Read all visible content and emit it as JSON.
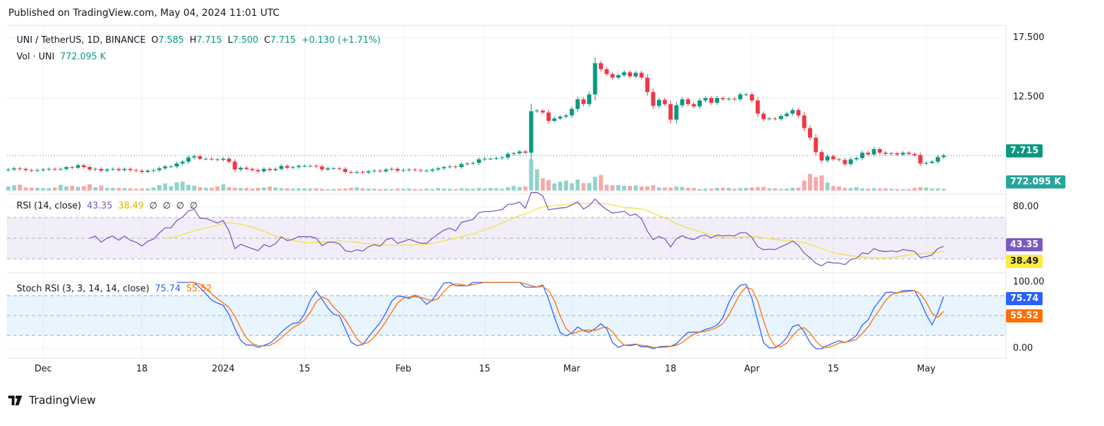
{
  "header": {
    "published": "Published on TradingView.com, May 04, 2024 11:01 UTC"
  },
  "legend": {
    "symbol": "UNI / TetherUS, 1D, BINANCE",
    "o_label": "O",
    "o": "7.585",
    "h_label": "H",
    "h": "7.715",
    "l_label": "L",
    "l": "7.500",
    "c_label": "C",
    "c": "7.715",
    "change": "+0.130 (+1.71%)",
    "vol_label": "Vol · UNI",
    "vol": "772.095 K"
  },
  "rsi_legend": {
    "title": "RSI (14, close)",
    "rsi": "43.35",
    "ma": "38.49",
    "extras": [
      "∅",
      "∅",
      "∅",
      "∅"
    ]
  },
  "stoch_legend": {
    "title": "Stoch RSI (3, 3, 14, 14, close)",
    "k": "75.74",
    "d": "55.52"
  },
  "price_axis": {
    "ticks": [
      "17.500",
      "12.500"
    ],
    "last_price": "7.715",
    "last_volume": "772.095 K"
  },
  "rsi_axis": {
    "ticks": [
      "80.00"
    ],
    "rsi_tag": "43.35",
    "ma_tag": "38.49"
  },
  "stoch_axis": {
    "ticks": [
      "100.00",
      "0.00"
    ],
    "k_tag": "75.74",
    "d_tag": "55.52"
  },
  "footer": {
    "brand": "TradingView"
  },
  "colors": {
    "up": "#089981",
    "down": "#f23645",
    "vol_up": "#92d2cc",
    "vol_down": "#f7a9a7",
    "rsi": "#7e57c2",
    "rsi_ma": "#f7e03c",
    "stoch_k": "#2962ff",
    "stoch_d": "#ff6d00"
  },
  "chart_data": {
    "type": "candlestick",
    "symbol": "UNI / TetherUS",
    "interval": "1D",
    "x_range": [
      "2023-11-25",
      "2024-05-04"
    ],
    "y_ticks": [
      17.5,
      12.5
    ],
    "time_ticks": [
      {
        "label": "Dec",
        "date": "2023-12-01"
      },
      {
        "label": "18",
        "date": "2023-12-18"
      },
      {
        "label": "2024",
        "date": "2024-01-01"
      },
      {
        "label": "15",
        "date": "2024-01-15"
      },
      {
        "label": "Feb",
        "date": "2024-02-01"
      },
      {
        "label": "15",
        "date": "2024-02-15"
      },
      {
        "label": "Mar",
        "date": "2024-03-01"
      },
      {
        "label": "18",
        "date": "2024-03-18"
      },
      {
        "label": "Apr",
        "date": "2024-04-01"
      },
      {
        "label": "15",
        "date": "2024-04-15"
      },
      {
        "label": "May",
        "date": "2024-05-01"
      }
    ],
    "first_open": 6.5,
    "close": [
      6.55,
      6.65,
      6.6,
      6.5,
      6.45,
      6.5,
      6.55,
      6.6,
      6.55,
      6.6,
      6.75,
      6.7,
      6.9,
      6.75,
      6.55,
      6.6,
      6.45,
      6.55,
      6.6,
      6.5,
      6.6,
      6.5,
      6.45,
      6.35,
      6.45,
      6.5,
      6.65,
      6.8,
      6.8,
      7.05,
      7.2,
      7.55,
      7.65,
      7.45,
      7.45,
      7.4,
      7.35,
      7.45,
      7.2,
      6.55,
      6.7,
      6.6,
      6.5,
      6.4,
      6.6,
      6.5,
      6.6,
      6.85,
      6.7,
      6.75,
      6.85,
      6.85,
      6.85,
      6.8,
      6.55,
      6.65,
      6.65,
      6.6,
      6.35,
      6.3,
      6.35,
      6.3,
      6.4,
      6.45,
      6.4,
      6.55,
      6.6,
      6.45,
      6.5,
      6.55,
      6.5,
      6.45,
      6.45,
      6.55,
      6.65,
      6.75,
      6.8,
      6.75,
      7.0,
      7.05,
      7.1,
      7.4,
      7.45,
      7.45,
      7.5,
      7.55,
      7.85,
      7.9,
      8.05,
      7.95,
      11.4,
      11.45,
      11.3,
      10.6,
      10.8,
      10.95,
      11.05,
      11.6,
      12.4,
      12.0,
      12.8,
      15.4,
      14.9,
      14.5,
      14.2,
      14.4,
      14.65,
      14.3,
      14.6,
      14.2,
      13.0,
      11.85,
      12.35,
      12.0,
      10.7,
      11.9,
      12.4,
      12.0,
      11.8,
      12.3,
      12.5,
      12.1,
      12.5,
      12.4,
      12.45,
      12.4,
      12.8,
      12.8,
      12.3,
      11.2,
      10.75,
      10.8,
      10.75,
      11.0,
      11.2,
      11.5,
      11.05,
      10.0,
      9.2,
      8.0,
      7.3,
      7.65,
      7.4,
      7.35,
      7.0,
      7.4,
      7.5,
      7.95,
      7.8,
      8.25,
      7.95,
      7.85,
      7.9,
      7.8,
      7.95,
      7.85,
      7.75,
      7.05,
      7.1,
      7.2,
      7.585,
      7.715
    ],
    "volume_k": [
      1800,
      2400,
      2600,
      1400,
      1300,
      1200,
      1100,
      1100,
      1400,
      2600,
      1800,
      2200,
      1700,
      2000,
      2800,
      1500,
      2300,
      1200,
      1200,
      1200,
      1100,
      900,
      800,
      900,
      900,
      1400,
      2500,
      3200,
      2000,
      3800,
      4000,
      2600,
      2200,
      1600,
      1300,
      1300,
      1900,
      2800,
      1500,
      1300,
      1100,
      1200,
      900,
      1200,
      1400,
      1800,
      1400,
      1100,
      1000,
      800,
      1000,
      1000,
      900,
      1000,
      800,
      600,
      700,
      800,
      900,
      1200,
      1400,
      1000,
      900,
      800,
      700,
      800,
      700,
      900,
      800,
      900,
      700,
      600,
      900,
      700,
      1100,
      900,
      800,
      700,
      1000,
      900,
      800,
      1100,
      900,
      1100,
      1000,
      800,
      1500,
      2100,
      1600,
      1900,
      14000,
      9500,
      5500,
      4800,
      3200,
      4000,
      4500,
      3300,
      5000,
      3300,
      3400,
      6200,
      7000,
      2600,
      2400,
      2500,
      2200,
      2100,
      2300,
      1800,
      1900,
      2400,
      1400,
      1400,
      1300,
      1800,
      1600,
      1300,
      1200,
      700,
      900,
      900,
      1200,
      1300,
      1200,
      800,
      1100,
      1200,
      1400,
      1500,
      1700,
      1000,
      1000,
      700,
      900,
      1200,
      1300,
      4500,
      7500,
      6000,
      6800,
      3600,
      2100,
      1900,
      1200,
      1100,
      1500,
      1000,
      800,
      1000,
      900,
      900,
      800,
      700,
      600,
      700,
      1200,
      1600,
      1400,
      900,
      1000,
      772.095
    ],
    "rsi": {
      "length": 14,
      "ma_length": 14,
      "upper": 70,
      "middle": 50,
      "lower": 30,
      "axis_ticks": [
        80
      ]
    },
    "stoch_rsi": {
      "k": 3,
      "d": 3,
      "rsi_length": 14,
      "stoch_length": 14,
      "upper": 80,
      "middle": 50,
      "lower": 20,
      "axis_ticks": [
        100,
        0
      ]
    }
  }
}
